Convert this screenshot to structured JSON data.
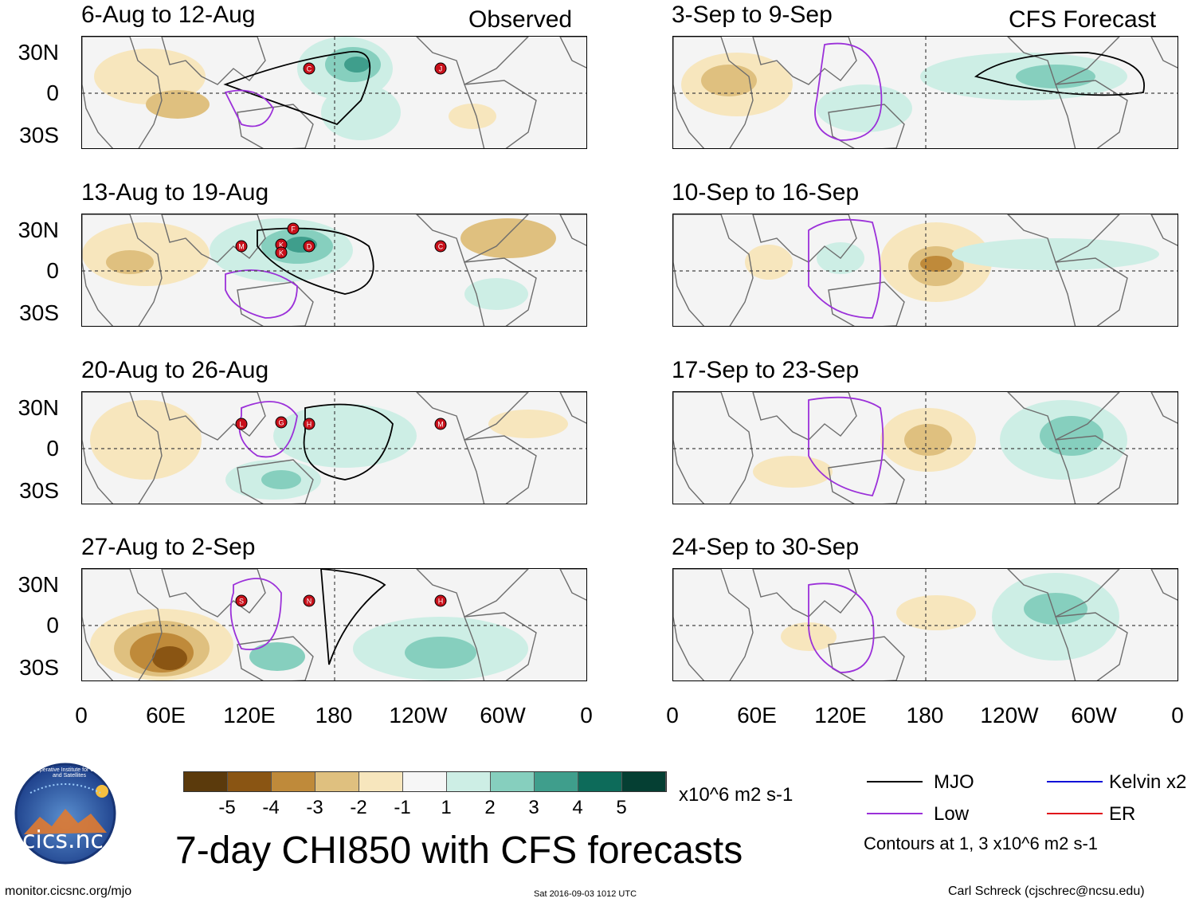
{
  "columns": {
    "left_label": "Observed",
    "right_label": "CFS Forecast"
  },
  "panels": [
    {
      "title": "6-Aug to 12-Aug",
      "storms": [
        "C",
        "J"
      ]
    },
    {
      "title": "3-Sep to 9-Sep",
      "storms": []
    },
    {
      "title": "13-Aug to 19-Aug",
      "storms": [
        "D",
        "C",
        "M",
        "K",
        "K",
        "F"
      ]
    },
    {
      "title": "10-Sep to 16-Sep",
      "storms": []
    },
    {
      "title": "20-Aug to 26-Aug",
      "storms": [
        "H",
        "M",
        "L",
        "G"
      ]
    },
    {
      "title": "17-Sep to 23-Sep",
      "storms": []
    },
    {
      "title": "27-Aug to 2-Sep",
      "storms": [
        "N",
        "H",
        "S"
      ]
    },
    {
      "title": "24-Sep to 30-Sep",
      "storms": []
    }
  ],
  "axes": {
    "y_labels": [
      "30N",
      "0",
      "30S"
    ],
    "x_labels": [
      "0",
      "60E",
      "120E",
      "180",
      "120W",
      "60W",
      "0"
    ]
  },
  "colorbar": {
    "colors": [
      "#5b3a0c",
      "#8a5513",
      "#bf8a3a",
      "#dfc07f",
      "#f7e6bd",
      "#f6f6f6",
      "#cdeee5",
      "#86cfbe",
      "#3f9e8c",
      "#0d6b5a",
      "#053f33"
    ],
    "ticks": [
      "-5",
      "-4",
      "-3",
      "-2",
      "-1",
      "1",
      "2",
      "3",
      "4",
      "5"
    ],
    "units": "x10^6 m2 s-1"
  },
  "legend": {
    "items": [
      {
        "label": "MJO",
        "color": "#000000"
      },
      {
        "label": "Low",
        "color": "#9b30d9"
      },
      {
        "label": "Kelvin x2",
        "color": "#1010d8"
      },
      {
        "label": "ER",
        "color": "#e0101a"
      }
    ],
    "note": "Contours at 1, 3 x10^6 m2 s-1"
  },
  "logo": {
    "text": "cics.nc",
    "ring_text": "Cooperative Institute for Climate and Satellites"
  },
  "title": "7-day CHI850 with CFS forecasts",
  "footer": {
    "url": "monitor.cicsnc.org/mjo",
    "timestamp": "Sat 2016-09-03 1012 UTC",
    "author": "Carl Schreck (cjschrec@ncsu.edu)"
  }
}
